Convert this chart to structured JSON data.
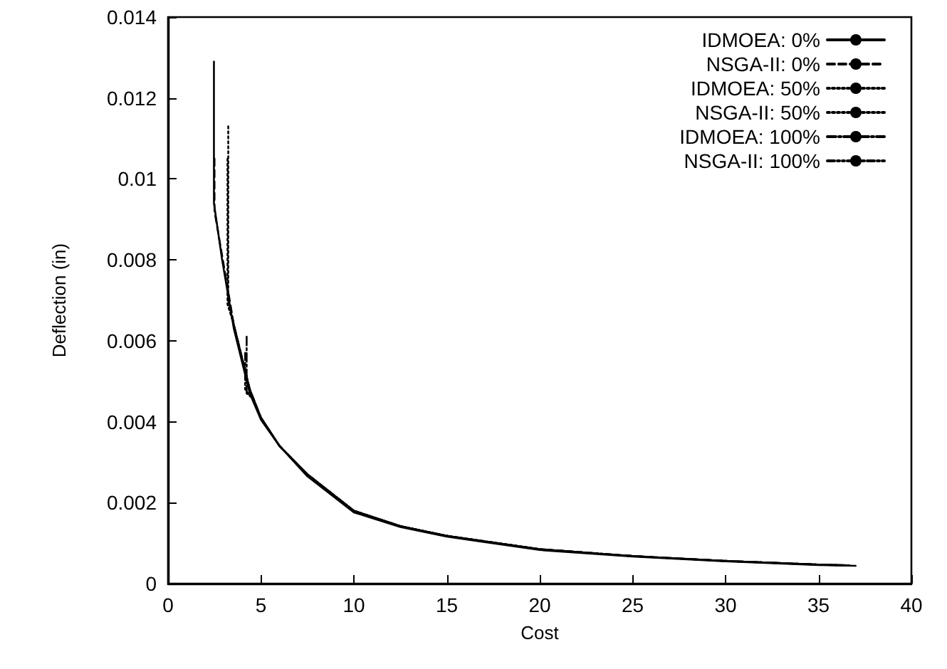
{
  "chart_data": {
    "type": "line",
    "xlabel": "Cost",
    "ylabel": "Deflection (in)",
    "xlim": [
      0,
      40
    ],
    "xticks": [
      0,
      5,
      10,
      15,
      20,
      25,
      30,
      35,
      40
    ],
    "ylim": [
      0,
      0.014
    ],
    "yticks": [
      0,
      0.002,
      0.004,
      0.006,
      0.008,
      0.01,
      0.012,
      0.014
    ],
    "grid": false,
    "legend": "top right",
    "marker": "none",
    "series": [
      {
        "name": "IDMOEA: 0%",
        "color": "#000000",
        "line_style": "solid",
        "x": [
          2.47,
          2.47,
          2.91,
          3.54,
          4.4,
          5,
          6,
          7.5,
          10,
          12.5,
          15,
          20,
          25,
          30,
          35,
          37
        ],
        "values": [
          0.0129,
          0.0094,
          0.008,
          0.0063,
          0.0047,
          0.00405,
          0.0034,
          0.00265,
          0.00176,
          0.0014,
          0.00116,
          0.00083,
          0.00067,
          0.00055,
          0.00046,
          0.00044
        ]
      },
      {
        "name": "NSGA-II: 0%",
        "color": "#000000",
        "line_style": "dashed",
        "x": [
          2.5,
          2.5,
          2.95,
          3.54,
          4.4,
          5,
          6,
          7.5,
          10,
          12.5,
          15,
          20,
          25,
          30,
          35,
          36.5
        ],
        "values": [
          0.0105,
          0.0092,
          0.008,
          0.0064,
          0.0048,
          0.0041,
          0.0034,
          0.0027,
          0.0018,
          0.00142,
          0.00118,
          0.00085,
          0.00068,
          0.00056,
          0.00047,
          0.00045
        ]
      },
      {
        "name": "IDMOEA: 50%",
        "color": "#000000",
        "line_style": "dotted",
        "x": [
          3.24,
          3.24,
          3.54,
          4.4,
          5,
          6,
          7.5,
          10,
          12.5,
          15,
          20,
          25,
          30,
          35,
          36.8
        ],
        "values": [
          0.0113,
          0.007,
          0.0064,
          0.0048,
          0.0041,
          0.0034,
          0.0027,
          0.0018,
          0.00142,
          0.00118,
          0.00085,
          0.00068,
          0.00056,
          0.00047,
          0.00045
        ]
      },
      {
        "name": "NSGA-II: 50%",
        "color": "#000000",
        "line_style": "dotted",
        "x": [
          3.2,
          3.2,
          3.54,
          4.4,
          5,
          6,
          7.5,
          10,
          12.5,
          15,
          20,
          25,
          30,
          35,
          36.6
        ],
        "values": [
          0.0105,
          0.0069,
          0.0064,
          0.0048,
          0.0041,
          0.0034,
          0.0027,
          0.0018,
          0.00142,
          0.00118,
          0.00085,
          0.00068,
          0.00056,
          0.00047,
          0.00045
        ]
      },
      {
        "name": "IDMOEA: 100%",
        "color": "#000000",
        "line_style": "dashdot",
        "x": [
          4.23,
          4.23,
          4.5,
          5,
          6,
          7.5,
          10,
          12.5,
          15,
          20,
          25,
          30,
          35,
          36.7
        ],
        "values": [
          0.0061,
          0.0047,
          0.0046,
          0.0041,
          0.0034,
          0.0027,
          0.0018,
          0.00142,
          0.00118,
          0.00085,
          0.00068,
          0.00056,
          0.00047,
          0.00045
        ]
      },
      {
        "name": "NSGA-II: 100%",
        "color": "#000000",
        "line_style": "dashdotdot",
        "x": [
          4.15,
          4.15,
          4.5,
          5,
          6,
          7.5,
          10,
          12.5,
          15,
          20,
          25,
          30,
          35,
          36.4
        ],
        "values": [
          0.0057,
          0.0048,
          0.0046,
          0.0041,
          0.0034,
          0.0027,
          0.0018,
          0.00142,
          0.00118,
          0.00085,
          0.00068,
          0.00056,
          0.00047,
          0.00045
        ]
      }
    ]
  }
}
